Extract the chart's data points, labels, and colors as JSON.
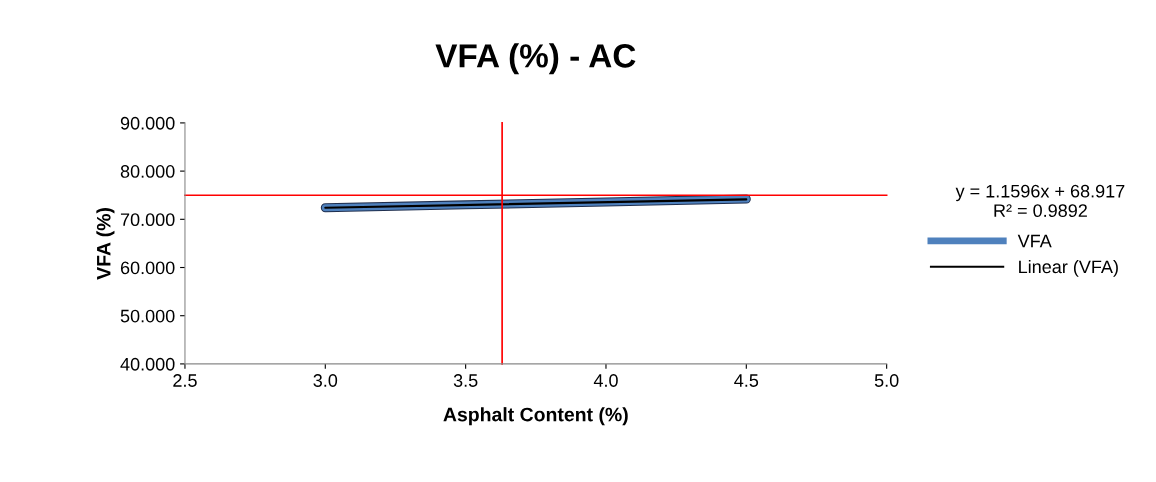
{
  "chart_data": {
    "type": "line",
    "title": "VFA (%) - AC",
    "xlabel": "Asphalt Content (%)",
    "ylabel": "VFA (%)",
    "x": [
      3.0,
      3.5,
      4.0,
      4.5
    ],
    "series": [
      {
        "name": "VFA",
        "color": "#4f81bd",
        "values": [
          72.4,
          73.0,
          73.6,
          74.2
        ]
      },
      {
        "name": "Linear (VFA)",
        "color": "#000000",
        "type": "line",
        "x": [
          3.0,
          4.5
        ],
        "values": [
          72.4,
          74.13
        ]
      }
    ],
    "xlim": [
      2.5,
      5.0
    ],
    "xticks": [
      {
        "value": 2.5,
        "label": "2.5"
      },
      {
        "value": 3.0,
        "label": "3.0"
      },
      {
        "value": 3.5,
        "label": "3.5"
      },
      {
        "value": 4.0,
        "label": "4.0"
      },
      {
        "value": 4.5,
        "label": "4.5"
      },
      {
        "value": 5.0,
        "label": "5.0"
      }
    ],
    "ylim": [
      40,
      90
    ],
    "yticks": [
      {
        "value": 40,
        "label": "40.000"
      },
      {
        "value": 50,
        "label": "50.000"
      },
      {
        "value": 60,
        "label": "60.000"
      },
      {
        "value": 70,
        "label": "70.000"
      },
      {
        "value": 80,
        "label": "80.000"
      },
      {
        "value": 90,
        "label": "90.000"
      }
    ],
    "ref_lines": [
      {
        "axis": "y",
        "value": 75,
        "color": "#ff0000"
      },
      {
        "axis": "x",
        "value": 3.63,
        "color": "#ff0000"
      }
    ],
    "annotations": [
      "y = 1.1596x + 68.917\nR² = 0.9892"
    ],
    "legend": "right",
    "grid": false,
    "marker": "none"
  }
}
